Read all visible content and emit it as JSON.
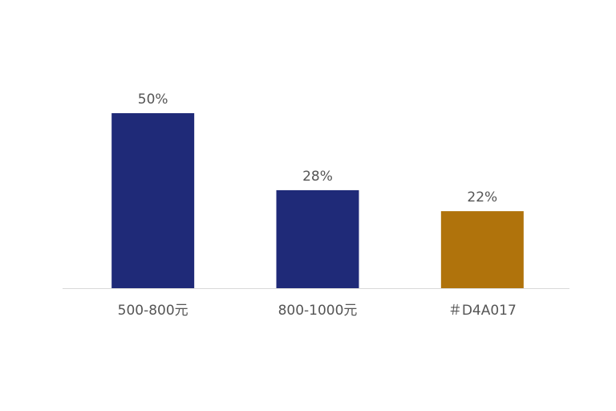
{
  "chart_data": {
    "type": "bar",
    "categories": [
      "500-800元",
      "800-1000元",
      "＃D4A017"
    ],
    "values": [
      50,
      28,
      22
    ],
    "value_labels": [
      "50%",
      "28%",
      "22%"
    ],
    "colors": [
      "#1f2a78",
      "#1f2a78",
      "#b0730c"
    ],
    "ylim": [
      0,
      50
    ]
  }
}
